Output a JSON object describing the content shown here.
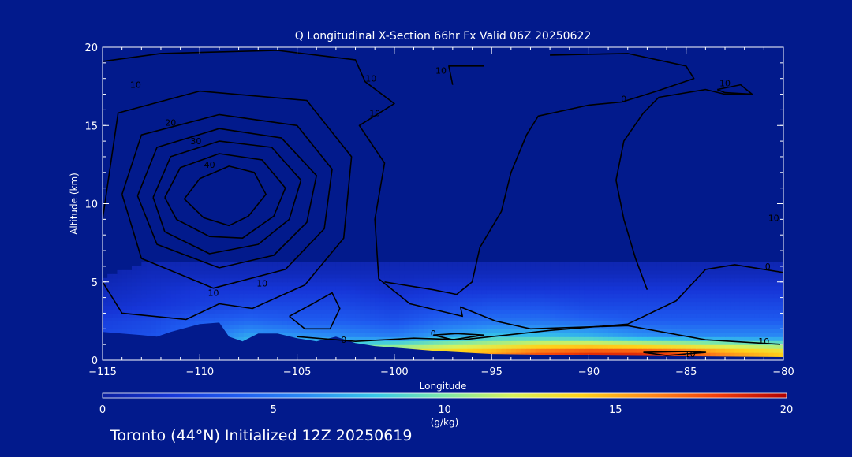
{
  "colors": {
    "background": "#021a8c",
    "frame": "#ffffff",
    "contour": "#000000",
    "colormap": [
      "#0b1fa0",
      "#1636d8",
      "#1f5cf0",
      "#2a8cf5",
      "#37c7e8",
      "#7de8a8",
      "#d8f25a",
      "#ffd21a",
      "#ff8a1a",
      "#f03c0a",
      "#b00000"
    ]
  },
  "chart_data": {
    "type": "heatmap",
    "title": "Q Longitudinal X-Section 66hr  Fx Valid 06Z 20250622",
    "xlabel": "Longitude",
    "ylabel": "Altitude (km)",
    "xlim": [
      -115,
      -80
    ],
    "ylim": [
      0,
      20
    ],
    "x_ticks": [
      -115,
      -110,
      -105,
      -100,
      -95,
      -90,
      -85,
      -80
    ],
    "x_tick_labels": [
      "−115",
      "−110",
      "−105",
      "−100",
      "−95",
      "−90",
      "−85",
      "−80"
    ],
    "y_ticks": [
      0,
      5,
      10,
      15,
      20
    ],
    "y_tick_labels": [
      "0",
      "5",
      "10",
      "15",
      "20"
    ],
    "colorbar": {
      "label": "(g/kg)",
      "range": [
        0,
        20
      ],
      "ticks": [
        0,
        5,
        10,
        15,
        20
      ],
      "tick_labels": [
        "0",
        "5",
        "10",
        "15",
        "20"
      ]
    },
    "moisture_field_g_per_kg": {
      "x": [
        -115,
        -112.5,
        -110,
        -107.5,
        -105,
        -102.5,
        -100,
        -97.5,
        -95,
        -92.5,
        -90,
        -87.5,
        -85,
        -82.5,
        -80
      ],
      "y": [
        0.5,
        1.5,
        2.5,
        3.5,
        4.5,
        5.5,
        6.5
      ],
      "values": [
        [
          3.5,
          4.5,
          6.0,
          9.0,
          10.5,
          12.0,
          13.5,
          14.5,
          15.5,
          17.5,
          18.5,
          18.5,
          17.5,
          15.5,
          14.0
        ],
        [
          3.0,
          3.5,
          5.0,
          7.0,
          6.5,
          6.0,
          5.5,
          7.0,
          8.0,
          8.0,
          7.5,
          6.5,
          6.0,
          6.0,
          6.0
        ],
        [
          2.5,
          3.0,
          4.0,
          4.5,
          4.0,
          4.0,
          3.5,
          4.5,
          5.0,
          5.0,
          4.5,
          4.0,
          4.0,
          4.0,
          4.0
        ],
        [
          1.5,
          2.0,
          2.5,
          3.0,
          3.0,
          3.0,
          2.5,
          3.0,
          3.5,
          3.5,
          3.0,
          3.0,
          3.0,
          3.0,
          3.0
        ],
        [
          1.0,
          1.5,
          2.0,
          2.0,
          2.0,
          2.0,
          1.5,
          2.0,
          2.0,
          2.0,
          2.0,
          2.0,
          2.0,
          2.0,
          2.0
        ],
        [
          0.5,
          1.0,
          1.0,
          1.0,
          1.0,
          1.0,
          1.0,
          1.0,
          1.0,
          1.0,
          1.0,
          1.0,
          1.0,
          1.0,
          1.0
        ],
        [
          0.0,
          0.5,
          0.5,
          0.5,
          0.5,
          0.5,
          0.5,
          0.5,
          0.5,
          0.5,
          0.5,
          0.5,
          0.5,
          0.5,
          0.5
        ]
      ]
    },
    "terrain_km": {
      "x": [
        -115,
        -113,
        -112.2,
        -111.5,
        -110,
        -109,
        -108.5,
        -107.8,
        -107,
        -106,
        -105,
        -104,
        -103,
        -102,
        -101,
        -100,
        -98,
        -95,
        -90,
        -85,
        -80
      ],
      "y": [
        1.8,
        1.6,
        1.5,
        1.8,
        2.3,
        2.4,
        1.5,
        1.2,
        1.7,
        1.7,
        1.4,
        1.2,
        1.5,
        1.1,
        0.9,
        0.8,
        0.6,
        0.4,
        0.3,
        0.25,
        0.2
      ]
    },
    "contour_labels": [
      {
        "text": "10",
        "x": -113.3,
        "y": 17.4
      },
      {
        "text": "20",
        "x": -111.5,
        "y": 15.0
      },
      {
        "text": "30",
        "x": -110.2,
        "y": 13.8
      },
      {
        "text": "40",
        "x": -109.5,
        "y": 12.3
      },
      {
        "text": "10",
        "x": -101.2,
        "y": 17.8
      },
      {
        "text": "10",
        "x": -101.0,
        "y": 15.6
      },
      {
        "text": "10",
        "x": -97.6,
        "y": 18.3
      },
      {
        "text": "0",
        "x": -88.2,
        "y": 16.5
      },
      {
        "text": "10",
        "x": -83.0,
        "y": 17.5
      },
      {
        "text": "10",
        "x": -80.5,
        "y": 8.9
      },
      {
        "text": "0",
        "x": -80.8,
        "y": 5.8
      },
      {
        "text": "10",
        "x": -106.8,
        "y": 4.7
      },
      {
        "text": "10",
        "x": -109.3,
        "y": 4.1
      },
      {
        "text": "0",
        "x": -98.0,
        "y": 1.5
      },
      {
        "text": "0",
        "x": -102.6,
        "y": 1.1
      },
      {
        "text": "10",
        "x": -84.8,
        "y": 0.2
      },
      {
        "text": "10",
        "x": -81.0,
        "y": 1.0
      }
    ],
    "contour_lines": [
      [
        [
          -110.8,
          10.3
        ],
        [
          -110.0,
          11.6
        ],
        [
          -108.5,
          12.4
        ],
        [
          -107.2,
          12.0
        ],
        [
          -106.6,
          10.6
        ],
        [
          -107.5,
          9.2
        ],
        [
          -108.5,
          8.6
        ],
        [
          -109.8,
          9.1
        ],
        [
          -110.8,
          10.3
        ]
      ],
      [
        [
          -111.8,
          10.4
        ],
        [
          -111.0,
          12.3
        ],
        [
          -109.0,
          13.2
        ],
        [
          -106.8,
          12.8
        ],
        [
          -105.6,
          11.0
        ],
        [
          -106.2,
          9.2
        ],
        [
          -107.8,
          7.8
        ],
        [
          -109.5,
          7.9
        ],
        [
          -111.2,
          9.0
        ],
        [
          -111.8,
          10.4
        ]
      ],
      [
        [
          -112.4,
          10.4
        ],
        [
          -111.5,
          13.0
        ],
        [
          -109.0,
          14.0
        ],
        [
          -106.3,
          13.6
        ],
        [
          -104.8,
          11.5
        ],
        [
          -105.4,
          9.0
        ],
        [
          -107.0,
          7.4
        ],
        [
          -109.5,
          6.8
        ],
        [
          -111.8,
          8.2
        ],
        [
          -112.4,
          10.4
        ]
      ],
      [
        [
          -113.2,
          10.5
        ],
        [
          -112.2,
          13.6
        ],
        [
          -109.0,
          14.8
        ],
        [
          -105.8,
          14.2
        ],
        [
          -104.0,
          11.8
        ],
        [
          -104.5,
          8.8
        ],
        [
          -106.2,
          6.7
        ],
        [
          -109.0,
          5.9
        ],
        [
          -112.2,
          7.4
        ],
        [
          -113.2,
          10.5
        ]
      ],
      [
        [
          -114.0,
          10.6
        ],
        [
          -113.0,
          14.4
        ],
        [
          -109.0,
          15.7
        ],
        [
          -105.0,
          15.0
        ],
        [
          -103.2,
          12.2
        ],
        [
          -103.6,
          8.4
        ],
        [
          -105.6,
          5.8
        ],
        [
          -109.3,
          4.6
        ],
        [
          -113.0,
          6.5
        ],
        [
          -114.0,
          10.6
        ]
      ],
      [
        [
          -115.0,
          9.0
        ],
        [
          -114.2,
          15.8
        ],
        [
          -110.0,
          17.2
        ],
        [
          -104.5,
          16.6
        ],
        [
          -102.2,
          13.0
        ],
        [
          -102.6,
          7.8
        ],
        [
          -104.6,
          4.8
        ],
        [
          -107.3,
          3.3
        ],
        [
          -109.0,
          3.6
        ],
        [
          -110.7,
          2.6
        ],
        [
          -114.0,
          3.0
        ],
        [
          -115.0,
          5.0
        ]
      ],
      [
        [
          -115.0,
          19.1
        ],
        [
          -112.0,
          19.6
        ],
        [
          -106.0,
          19.8
        ],
        [
          -102.0,
          19.2
        ],
        [
          -101.5,
          17.8
        ],
        [
          -100.0,
          16.4
        ],
        [
          -101.8,
          15.0
        ],
        [
          -100.5,
          12.6
        ],
        [
          -101.0,
          9.0
        ],
        [
          -100.8,
          5.2
        ],
        [
          -99.2,
          3.6
        ],
        [
          -96.5,
          2.8
        ],
        [
          -96.6,
          3.4
        ],
        [
          -94.8,
          2.5
        ],
        [
          -93.0,
          2.0
        ],
        [
          -88.0,
          2.2
        ],
        [
          -84.0,
          1.3
        ],
        [
          -80.0,
          1.0
        ]
      ],
      [
        [
          -105.0,
          1.5
        ],
        [
          -102.0,
          1.2
        ],
        [
          -99.0,
          1.4
        ],
        [
          -96.5,
          1.3
        ],
        [
          -92.0,
          1.9
        ],
        [
          -88.0,
          2.3
        ],
        [
          -85.5,
          3.8
        ],
        [
          -84.0,
          5.8
        ],
        [
          -82.5,
          6.1
        ],
        [
          -80.0,
          5.6
        ]
      ],
      [
        [
          -87.0,
          4.5
        ],
        [
          -87.6,
          6.5
        ],
        [
          -88.2,
          9.0
        ],
        [
          -88.6,
          11.5
        ],
        [
          -88.2,
          14.0
        ],
        [
          -87.2,
          15.8
        ],
        [
          -86.4,
          16.8
        ],
        [
          -84.0,
          17.3
        ],
        [
          -83.0,
          17.0
        ],
        [
          -81.8,
          17.0
        ]
      ],
      [
        [
          -92.0,
          19.5
        ],
        [
          -88.0,
          19.6
        ],
        [
          -85.0,
          18.8
        ],
        [
          -84.6,
          18.0
        ],
        [
          -86.5,
          17.2
        ],
        [
          -88.3,
          16.5
        ],
        [
          -90.0,
          16.3
        ],
        [
          -92.6,
          15.6
        ],
        [
          -93.2,
          14.4
        ],
        [
          -94.0,
          12.0
        ],
        [
          -94.5,
          9.5
        ],
        [
          -95.6,
          7.2
        ],
        [
          -96.0,
          5.0
        ],
        [
          -96.8,
          4.2
        ],
        [
          -98.0,
          4.5
        ],
        [
          -100.5,
          5.0
        ]
      ],
      [
        [
          -97.0,
          17.6
        ],
        [
          -97.2,
          18.8
        ],
        [
          -95.4,
          18.8
        ]
      ],
      [
        [
          -98.0,
          1.6
        ],
        [
          -96.8,
          1.7
        ],
        [
          -95.4,
          1.6
        ],
        [
          -97.0,
          1.3
        ],
        [
          -98.0,
          1.6
        ]
      ],
      [
        [
          -87.2,
          0.5
        ],
        [
          -85.0,
          0.55
        ],
        [
          -84.0,
          0.5
        ],
        [
          -86.0,
          0.3
        ],
        [
          -87.2,
          0.5
        ]
      ],
      [
        [
          -105.4,
          2.8
        ],
        [
          -104.2,
          3.6
        ],
        [
          -103.2,
          4.3
        ],
        [
          -102.8,
          3.3
        ],
        [
          -103.3,
          2.0
        ],
        [
          -104.6,
          2.0
        ],
        [
          -105.4,
          2.8
        ]
      ],
      [
        [
          -83.4,
          17.3
        ],
        [
          -82.2,
          17.6
        ],
        [
          -81.6,
          17.0
        ],
        [
          -83.0,
          17.1
        ],
        [
          -83.4,
          17.3
        ]
      ]
    ]
  },
  "footer": {
    "run_info": "Toronto (44°N) Initialized 12Z 20250619"
  }
}
